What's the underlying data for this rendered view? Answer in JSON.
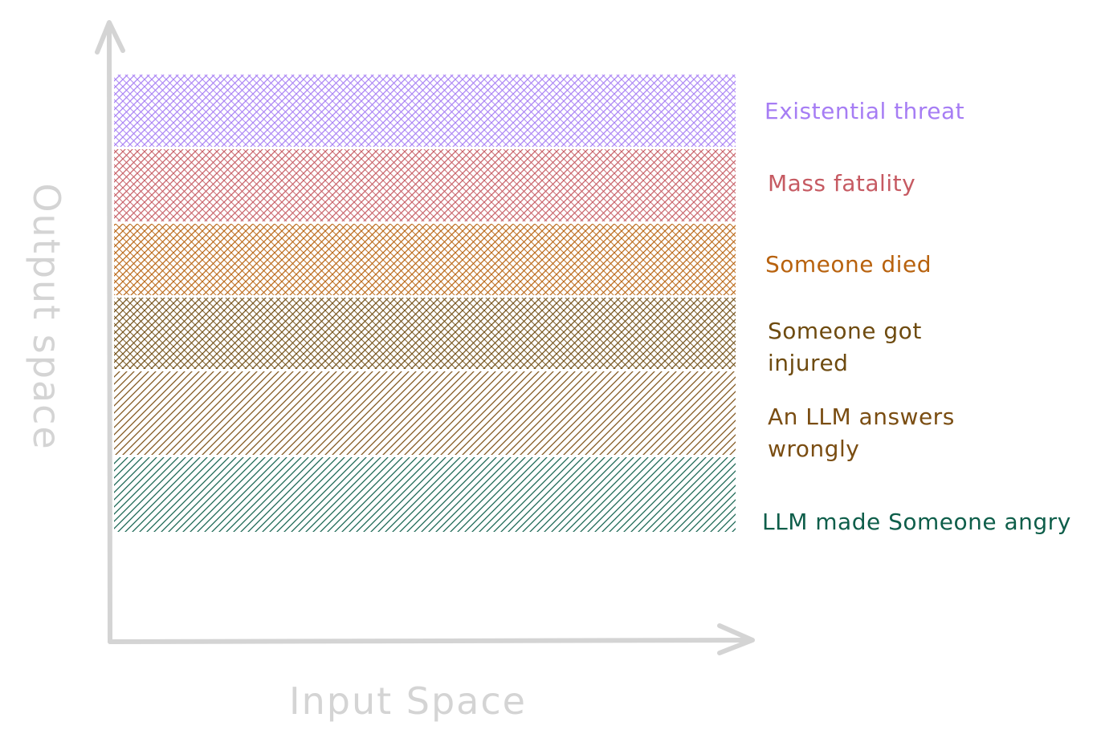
{
  "axes": {
    "x_label": "Input Space",
    "y_label": "Output space",
    "color": "#d4d4d4"
  },
  "bands": [
    {
      "id": "existential-threat",
      "label_lines": [
        "Existential threat"
      ],
      "color": "#a67df4",
      "pattern": "cross-hatch"
    },
    {
      "id": "mass-fatality",
      "label_lines": [
        "Mass fatality"
      ],
      "color": "#c65a62",
      "pattern": "cross-hatch"
    },
    {
      "id": "someone-died",
      "label_lines": [
        "Someone died"
      ],
      "color": "#b8620e",
      "pattern": "cross-hatch"
    },
    {
      "id": "someone-got-injured",
      "label_lines": [
        "Someone got",
        "injured"
      ],
      "color": "#6e4b10",
      "pattern": "cross-hatch"
    },
    {
      "id": "llm-answers-wrongly",
      "label_lines": [
        "An LLM answers",
        "wrongly"
      ],
      "color": "#7a4d12",
      "pattern": "hatch"
    },
    {
      "id": "llm-made-someone-angry",
      "label_lines": [
        "LLM made Someone angry"
      ],
      "color": "#0e5e4a",
      "pattern": "hatch"
    }
  ]
}
